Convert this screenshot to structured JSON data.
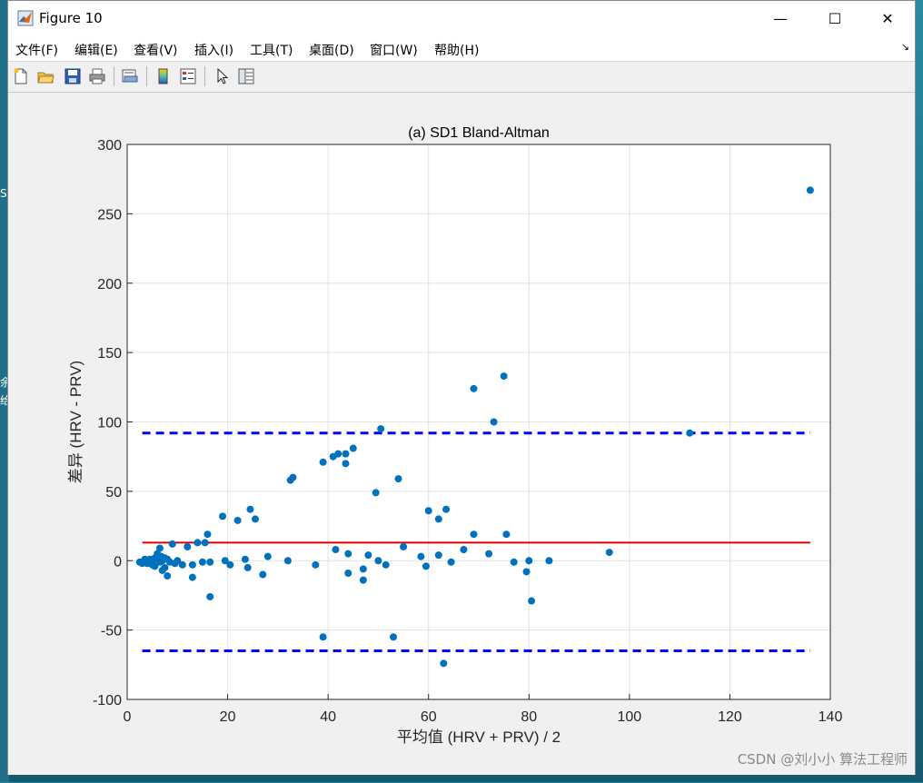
{
  "window": {
    "title": "Figure 10",
    "controls": {
      "minimize": "—",
      "maximize": "☐",
      "close": "✕"
    }
  },
  "menu": {
    "items": [
      "文件(F)",
      "编辑(E)",
      "查看(V)",
      "插入(I)",
      "工具(T)",
      "桌面(D)",
      "窗口(W)",
      "帮助(H)"
    ],
    "overflow": "↘"
  },
  "toolbar": {
    "icons": [
      "new-figure-icon",
      "open-file-icon",
      "save-icon",
      "print-icon",
      "print-preview-icon",
      "colorbar-icon",
      "legend-icon",
      "pointer-icon",
      "property-editor-icon"
    ]
  },
  "desktop": {
    "fragments": [
      "S",
      "余",
      "给"
    ]
  },
  "watermark": "CSDN @刘小小 算法工程师",
  "chart_data": {
    "type": "scatter",
    "title": "(a) SD1 Bland-Altman",
    "xlabel": "平均值 (HRV + PRV) / 2",
    "ylabel": "差异 (HRV - PRV)",
    "xlim": [
      0,
      140
    ],
    "ylim": [
      -100,
      300
    ],
    "xticks": [
      0,
      20,
      40,
      60,
      80,
      100,
      120,
      140
    ],
    "yticks": [
      -100,
      -50,
      0,
      50,
      100,
      150,
      200,
      250,
      300
    ],
    "grid": true,
    "colors": {
      "points": "#0072bd",
      "mean_line": "#e00000",
      "limit_lines": "#0000ff"
    },
    "mean_difference": 13,
    "limits_of_agreement": [
      92,
      -65
    ],
    "line_x_range": [
      3,
      136
    ],
    "points": [
      [
        2.5,
        -1
      ],
      [
        3,
        -2
      ],
      [
        3.5,
        1
      ],
      [
        4,
        -2
      ],
      [
        4.5,
        1
      ],
      [
        5,
        -3
      ],
      [
        5,
        0
      ],
      [
        5.5,
        2
      ],
      [
        5.5,
        -4
      ],
      [
        6,
        1
      ],
      [
        6,
        5
      ],
      [
        6.5,
        -1
      ],
      [
        6.5,
        9
      ],
      [
        6.8,
        3
      ],
      [
        7,
        -7
      ],
      [
        7,
        0
      ],
      [
        7.5,
        2
      ],
      [
        7.5,
        -5
      ],
      [
        8,
        -11
      ],
      [
        8,
        1
      ],
      [
        8.5,
        -1
      ],
      [
        9,
        12
      ],
      [
        9.5,
        -2
      ],
      [
        10,
        0
      ],
      [
        11,
        -3
      ],
      [
        12,
        10
      ],
      [
        13,
        -12
      ],
      [
        13,
        -3
      ],
      [
        14,
        13
      ],
      [
        15,
        -1
      ],
      [
        15.5,
        13
      ],
      [
        16,
        19
      ],
      [
        16.5,
        -26
      ],
      [
        16.5,
        -1
      ],
      [
        19,
        32
      ],
      [
        19.5,
        0
      ],
      [
        20.5,
        -3
      ],
      [
        22,
        29
      ],
      [
        23.5,
        1
      ],
      [
        24,
        -5
      ],
      [
        24.5,
        37
      ],
      [
        25.5,
        30
      ],
      [
        27,
        -10
      ],
      [
        28,
        3
      ],
      [
        32,
        0
      ],
      [
        32.5,
        58
      ],
      [
        33,
        60
      ],
      [
        37.5,
        -3
      ],
      [
        39,
        71
      ],
      [
        39,
        -55
      ],
      [
        41,
        75
      ],
      [
        41.5,
        8
      ],
      [
        42,
        77
      ],
      [
        43.5,
        70
      ],
      [
        43.5,
        77
      ],
      [
        44,
        -9
      ],
      [
        44,
        5
      ],
      [
        45,
        81
      ],
      [
        47,
        -6
      ],
      [
        47,
        -14
      ],
      [
        48,
        4
      ],
      [
        49.5,
        49
      ],
      [
        50,
        0
      ],
      [
        50.5,
        95
      ],
      [
        51.5,
        -3
      ],
      [
        53,
        -55
      ],
      [
        54,
        59
      ],
      [
        55,
        10
      ],
      [
        58.5,
        3
      ],
      [
        59.5,
        -4
      ],
      [
        60,
        36
      ],
      [
        62,
        30
      ],
      [
        62,
        4
      ],
      [
        63,
        -74
      ],
      [
        63.5,
        37
      ],
      [
        64.5,
        -1
      ],
      [
        67,
        8
      ],
      [
        69,
        124
      ],
      [
        69,
        19
      ],
      [
        72,
        5
      ],
      [
        73,
        100
      ],
      [
        75,
        133
      ],
      [
        75.5,
        19
      ],
      [
        77,
        -1
      ],
      [
        79.5,
        -8
      ],
      [
        80,
        0
      ],
      [
        80.5,
        -29
      ],
      [
        84,
        0
      ],
      [
        96,
        6
      ],
      [
        112,
        92
      ],
      [
        136,
        267
      ]
    ]
  }
}
